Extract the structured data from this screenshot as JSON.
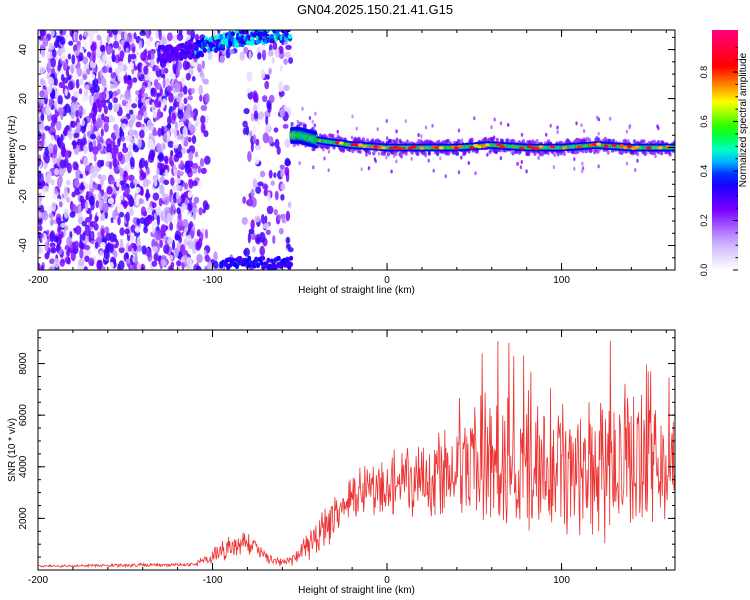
{
  "title": "GN04.2025.150.21.41.G15",
  "chart_data": [
    {
      "type": "heatmap",
      "xlabel": "Height of straight line (km)",
      "ylabel": "Frequency (Hz)",
      "xlim": [
        -200,
        165
      ],
      "ylim": [
        -50,
        48
      ],
      "x_ticks": [
        -200,
        -100,
        0,
        100
      ],
      "y_ticks": [
        -40,
        -20,
        0,
        20,
        40
      ],
      "colorbar": {
        "label": "Normalized spectral amplitude",
        "range": [
          0,
          0.97
        ],
        "ticks": [
          0.0,
          0.2,
          0.4,
          0.6,
          0.8
        ],
        "tick_labels": [
          "0.0",
          "0.2",
          "0.4",
          "0.6",
          "0.8"
        ],
        "colormap": [
          "#ffffff",
          "#7b00ff",
          "#0000ff",
          "#00ffff",
          "#00ff00",
          "#ffff00",
          "#ff0000",
          "#ff0080"
        ]
      },
      "ridge": {
        "x": [
          -55,
          -50,
          -45,
          -40,
          -30,
          -20,
          0,
          20,
          40,
          60,
          80,
          100,
          120,
          140,
          165
        ],
        "freq": [
          5,
          5,
          4,
          3,
          2,
          1,
          0,
          0,
          0,
          1,
          0,
          0,
          1,
          0,
          0
        ]
      },
      "upper_band": {
        "x": [
          -130,
          -110,
          -100,
          -90,
          -80,
          -70,
          -55
        ],
        "freq": [
          38,
          40,
          42,
          44,
          45,
          46,
          47
        ]
      }
    },
    {
      "type": "line",
      "xlabel": "Height of straight line (km)",
      "ylabel": "SNR (10 * v/v)",
      "xlim": [
        -200,
        165
      ],
      "ylim": [
        0,
        9300
      ],
      "x_ticks": [
        -200,
        -100,
        0,
        100
      ],
      "y_ticks": [
        2000,
        4000,
        6000,
        8000
      ],
      "color": "#ee3333",
      "envelope": {
        "x": [
          -200,
          -150,
          -110,
          -100,
          -90,
          -80,
          -70,
          -60,
          -50,
          -40,
          -30,
          -20,
          -10,
          0,
          10,
          20,
          30,
          40,
          50,
          60,
          70,
          80,
          90,
          100,
          110,
          120,
          130,
          140,
          150,
          160,
          165
        ],
        "mean": [
          150,
          180,
          220,
          500,
          900,
          1100,
          500,
          250,
          600,
          1300,
          2000,
          2700,
          3000,
          3200,
          3400,
          3600,
          3800,
          3900,
          4000,
          4100,
          4100,
          4200,
          4200,
          4300,
          4300,
          4200,
          4300,
          4200,
          4100,
          4100,
          4000
        ],
        "spread": [
          40,
          60,
          80,
          300,
          450,
          500,
          300,
          150,
          400,
          700,
          900,
          1000,
          1100,
          1200,
          1200,
          1400,
          1600,
          1800,
          2000,
          2200,
          2400,
          2500,
          2600,
          2800,
          2900,
          2900,
          2800,
          2600,
          2400,
          2200,
          2000
        ]
      }
    }
  ]
}
